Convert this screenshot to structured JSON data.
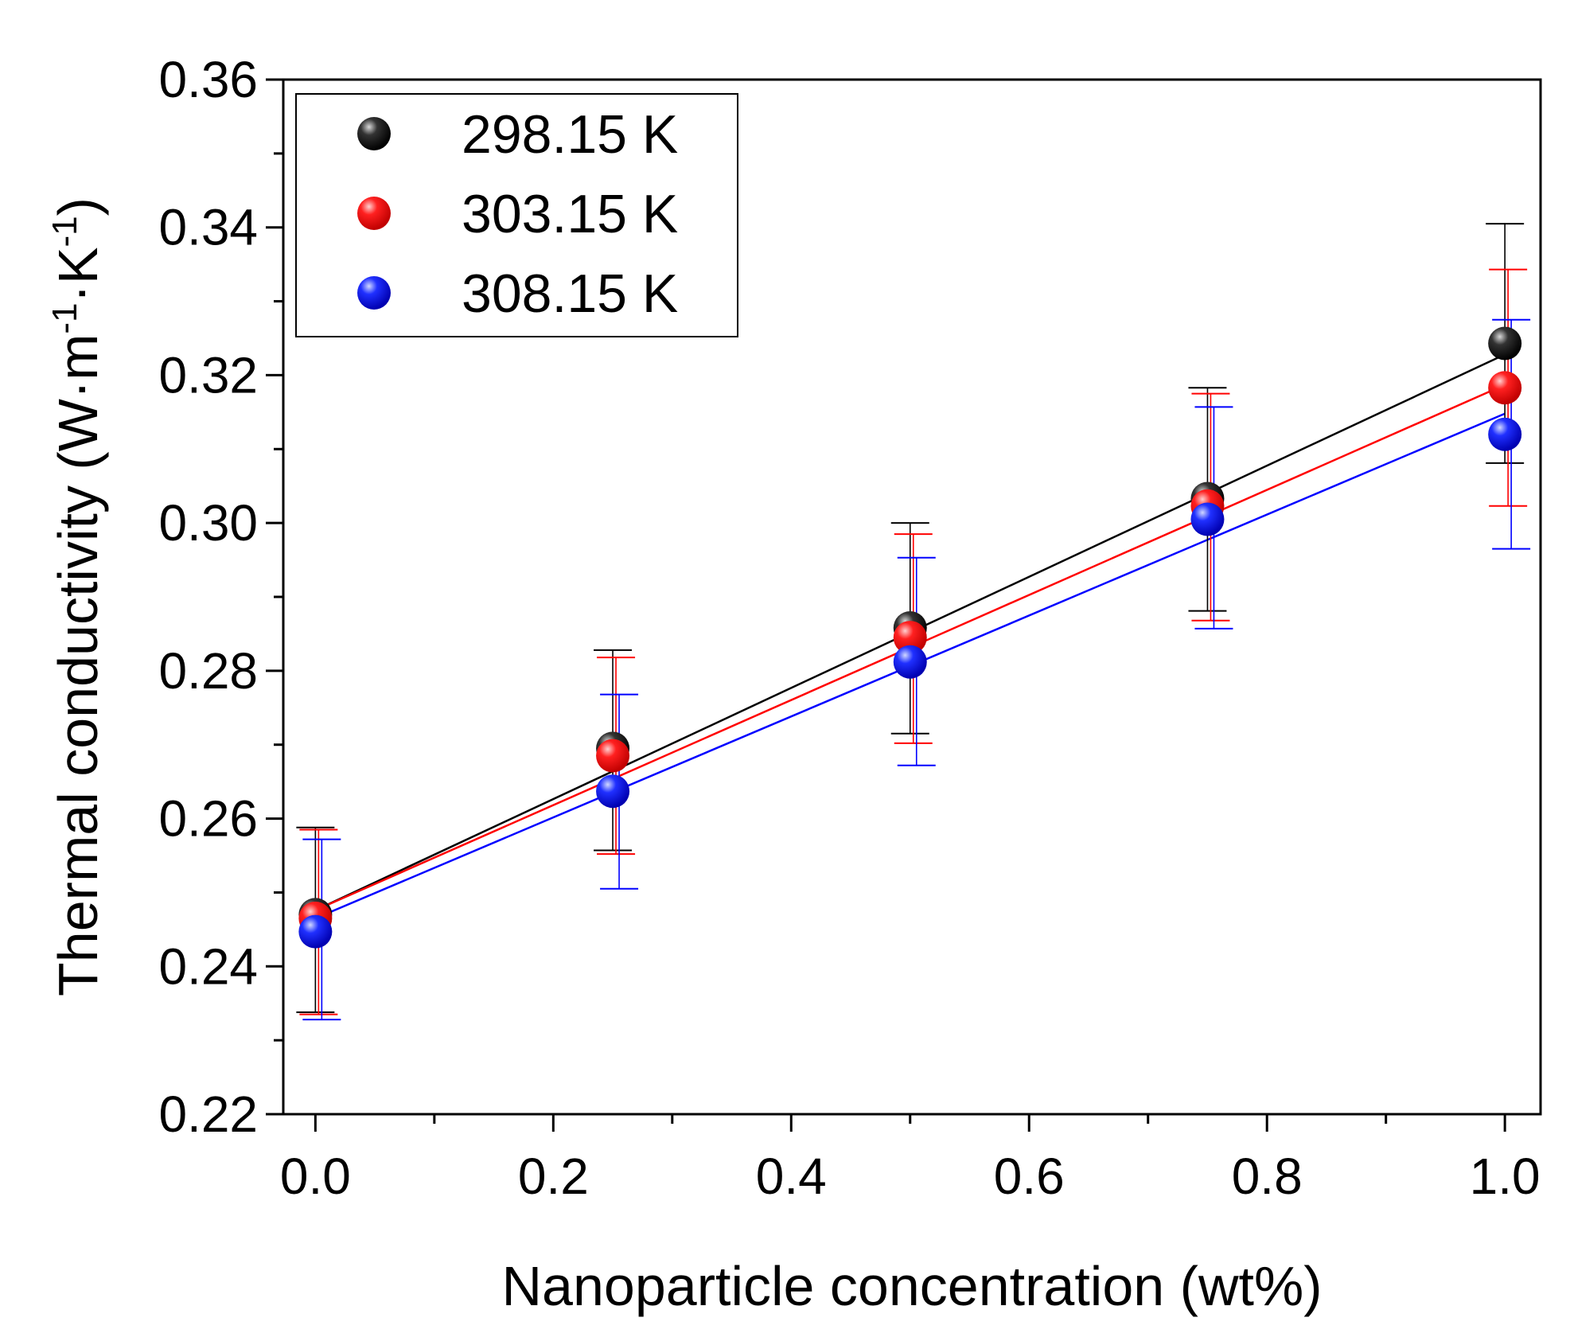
{
  "chart_data": {
    "type": "scatter",
    "title": "",
    "xlabel": "Nanoparticle concentration (wt%)",
    "ylabel": {
      "main": "Thermal conductivity (W·m",
      "sup1": "-1",
      "mid": "·K",
      "sup2": "-1",
      "end": ")"
    },
    "xlim": [
      -0.027,
      1.03
    ],
    "ylim": [
      0.22,
      0.36
    ],
    "xticks": [
      {
        "value": 0.0,
        "label": "0.0"
      },
      {
        "value": 0.2,
        "label": "0.2"
      },
      {
        "value": 0.4,
        "label": "0.4"
      },
      {
        "value": 0.6,
        "label": "0.6"
      },
      {
        "value": 0.8,
        "label": "0.8"
      },
      {
        "value": 1.0,
        "label": "1.0"
      }
    ],
    "xminor": [
      0.1,
      0.3,
      0.5,
      0.7,
      0.9
    ],
    "yticks": [
      {
        "value": 0.22,
        "label": "0.22"
      },
      {
        "value": 0.24,
        "label": "0.24"
      },
      {
        "value": 0.26,
        "label": "0.26"
      },
      {
        "value": 0.28,
        "label": "0.28"
      },
      {
        "value": 0.3,
        "label": "0.30"
      },
      {
        "value": 0.32,
        "label": "0.32"
      },
      {
        "value": 0.34,
        "label": "0.34"
      },
      {
        "value": 0.36,
        "label": "0.36"
      }
    ],
    "yminor": [
      0.23,
      0.25,
      0.27,
      0.29,
      0.31,
      0.33,
      0.35
    ],
    "legend_position": "top-left",
    "grid": false,
    "x": [
      0.0,
      0.25,
      0.5,
      0.75,
      1.0
    ],
    "series": [
      {
        "name": "298.15 K",
        "color": "#000000",
        "values": [
          0.247,
          0.2695,
          0.2858,
          0.3033,
          0.3243
        ],
        "err_low": [
          0.2338,
          0.2557,
          0.2715,
          0.2881,
          0.3081
        ],
        "err_high": [
          0.2588,
          0.2828,
          0.3,
          0.3183,
          0.3405
        ],
        "fit": {
          "intercept": 0.2476,
          "slope": 0.0752
        }
      },
      {
        "name": "303.15 K",
        "color": "#ff0000",
        "values": [
          0.2465,
          0.2685,
          0.2845,
          0.3023,
          0.3183
        ],
        "err_low": [
          0.2335,
          0.2552,
          0.2702,
          0.2868,
          0.3023
        ],
        "err_high": [
          0.2585,
          0.2818,
          0.2985,
          0.3175,
          0.3343
        ],
        "fit": {
          "intercept": 0.2476,
          "slope": 0.0711
        }
      },
      {
        "name": "308.15 K",
        "color": "#0000ff",
        "values": [
          0.2447,
          0.2637,
          0.2812,
          0.3005,
          0.312
        ],
        "err_low": [
          0.2328,
          0.2505,
          0.2672,
          0.2857,
          0.2965
        ],
        "err_high": [
          0.2572,
          0.2768,
          0.2953,
          0.3157,
          0.3275
        ],
        "fit": {
          "intercept": 0.2465,
          "slope": 0.0683
        }
      }
    ]
  }
}
